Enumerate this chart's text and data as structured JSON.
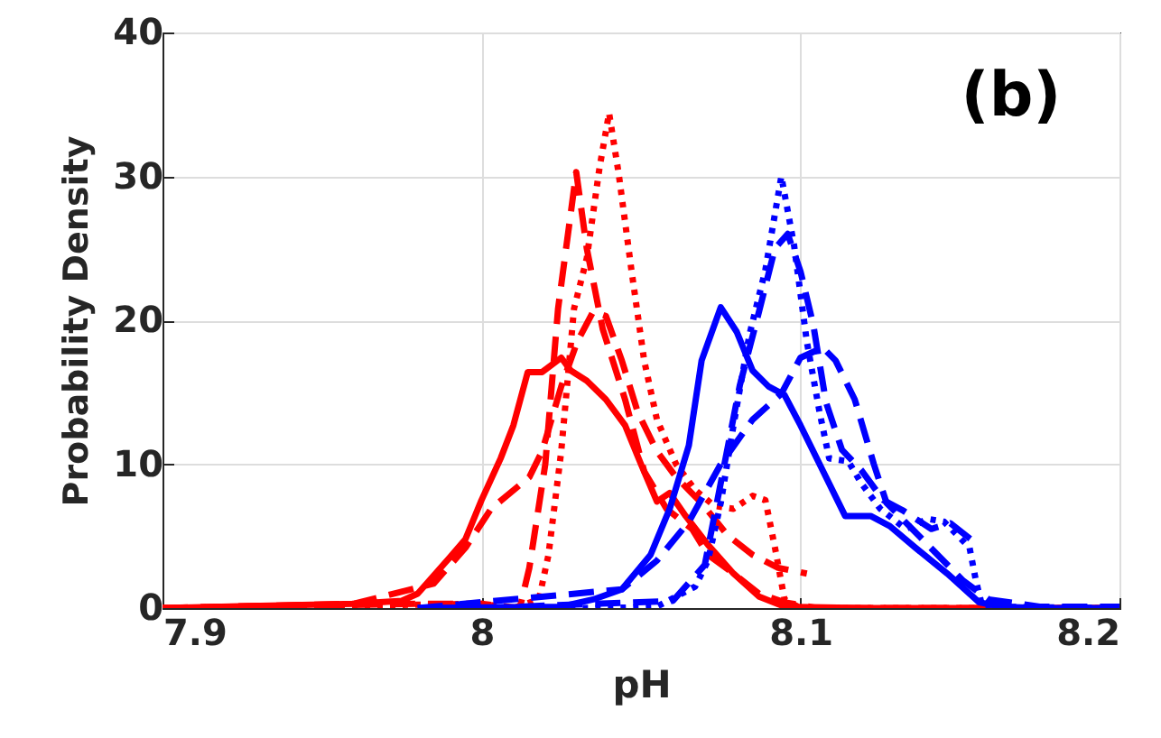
{
  "chart_data": {
    "type": "line",
    "xlabel": "pH",
    "ylabel": "Probability Density",
    "annotations": [
      "(b)"
    ],
    "xlim": [
      7.9,
      8.2
    ],
    "ylim": [
      0,
      40
    ],
    "xticks": [
      7.9,
      8,
      8.1,
      8.2
    ],
    "yticks": [
      0,
      10,
      20,
      30,
      40
    ],
    "grid": true,
    "marker": "none",
    "series": [
      {
        "color": "#ff0000",
        "line_style": "solid",
        "x": [
          7.9,
          7.96,
          7.975,
          7.98,
          7.99,
          7.995,
          8.0,
          8.006,
          8.01,
          8.0145,
          8.019,
          8.025,
          8.028,
          8.033,
          8.039,
          8.045,
          8.05,
          8.055,
          8.059,
          8.064,
          8.071,
          8.079,
          8.087,
          8.095,
          8.12,
          8.2
        ],
        "values": [
          0,
          0.3,
          0.5,
          1,
          3.5,
          4.8,
          7.5,
          10.4,
          12.7,
          16.4,
          16.4,
          17.4,
          16.5,
          15.8,
          14.5,
          12.7,
          10,
          7.4,
          8,
          6.4,
          4.4,
          2.4,
          0.8,
          0.1,
          0,
          0
        ]
      },
      {
        "color": "#ff0000",
        "line_style": "dashed",
        "x": [
          7.9,
          7.96,
          7.985,
          7.995,
          8.003,
          8.015,
          8.019,
          8.025,
          8.03,
          8.035,
          8.039,
          8.044,
          8.049,
          8.055,
          8.061,
          8.069,
          8.077,
          8.085,
          8.093,
          8.102
        ],
        "values": [
          0,
          0.3,
          1.7,
          4.2,
          6.9,
          9.1,
          10.9,
          15.4,
          18.5,
          20.6,
          20.3,
          17.2,
          13.6,
          10.9,
          9.1,
          7.3,
          5.1,
          3.7,
          2.8,
          2.4
        ]
      },
      {
        "color": "#ff0000",
        "line_style": "dashed",
        "x": [
          7.9,
          7.98,
          8.0,
          8.012,
          8.015,
          8.02,
          8.024,
          8.0297,
          8.033,
          8.038,
          8.045,
          8.051,
          8.058,
          8.066,
          8.071,
          8.079,
          8.087,
          8.095,
          8.105,
          8.2
        ],
        "values": [
          0,
          0.3,
          0.3,
          0,
          2.8,
          10,
          20.8,
          30.3,
          25,
          19.4,
          14.5,
          9.5,
          6.9,
          5.5,
          3.7,
          2.4,
          1,
          0.4,
          0,
          0
        ]
      },
      {
        "color": "#ff0000",
        "line_style": "dotted",
        "x": [
          7.9,
          8.0,
          8.01,
          8.018,
          8.021,
          8.025,
          8.029,
          8.033,
          8.037,
          8.04,
          8.043,
          8.047,
          8.051,
          8.055,
          8.061,
          8.067,
          8.073,
          8.079,
          8.085,
          8.089,
          8.092,
          8.095,
          8.1,
          8.2
        ],
        "values": [
          0,
          0.3,
          0,
          0.6,
          3.7,
          10.9,
          20.8,
          24.3,
          30.6,
          34.4,
          30.2,
          23.5,
          17.2,
          13.1,
          10,
          8.2,
          7.1,
          6.9,
          7.8,
          7.5,
          4.2,
          0.6,
          0,
          0
        ]
      },
      {
        "color": "#0000ff",
        "line_style": "solid",
        "x": [
          7.98,
          8.025,
          8.035,
          8.044,
          8.053,
          8.059,
          8.065,
          8.069,
          8.075,
          8.08,
          8.085,
          8.09,
          8.095,
          8.1,
          8.106,
          8.114,
          8.122,
          8.128,
          8.136,
          8.146,
          8.156,
          8.163,
          8.175,
          8.2
        ],
        "values": [
          0,
          0.1,
          0.6,
          1.3,
          3.7,
          6.9,
          11.3,
          17.2,
          20.9,
          19.2,
          16.5,
          15.4,
          14.8,
          12.7,
          10,
          6.4,
          6.4,
          5.7,
          4.2,
          2.4,
          0.4,
          0.1,
          0,
          0
        ]
      },
      {
        "color": "#0000ff",
        "line_style": "dashed",
        "x": [
          7.98,
          8.044,
          8.055,
          8.065,
          8.075,
          8.085,
          8.094,
          8.1,
          8.107,
          8.111,
          8.117,
          8.123,
          8.127,
          8.135,
          8.143,
          8.151,
          8.159,
          8.175,
          8.2
        ],
        "values": [
          0,
          1.3,
          3.3,
          6,
          10,
          13.1,
          14.9,
          17.4,
          18.1,
          17.2,
          14.5,
          10,
          7.3,
          5.5,
          3.7,
          1.9,
          0.6,
          0.1,
          0.1
        ]
      },
      {
        "color": "#0000ff",
        "line_style": "dashed",
        "x": [
          8.0,
          8.06,
          8.07,
          8.081,
          8.087,
          8.092,
          8.096,
          8.1,
          8.104,
          8.108,
          8.113,
          8.119,
          8.126,
          8.132,
          8.141,
          8.147,
          8.155
        ],
        "values": [
          0,
          0.5,
          3,
          15.5,
          20.6,
          25,
          26,
          23.4,
          19.7,
          14.3,
          11,
          9.6,
          7.5,
          6.8,
          5.5,
          5.9,
          4.5
        ]
      },
      {
        "color": "#0000ff",
        "line_style": "dotted",
        "x": [
          8.0,
          8.04,
          8.055,
          8.061,
          8.067,
          8.071,
          8.075,
          8.079,
          8.084,
          8.089,
          8.094,
          8.098,
          8.102,
          8.106,
          8.109,
          8.115,
          8.119,
          8.125,
          8.133,
          8.14,
          8.145,
          8.149,
          8.153,
          8.155,
          8.157,
          8.2
        ],
        "values": [
          0,
          0,
          0.1,
          0.8,
          1.5,
          3.3,
          7.3,
          12.7,
          19,
          23.5,
          30,
          25.2,
          18.5,
          13.6,
          10.4,
          10.2,
          8.7,
          6.9,
          5.5,
          6.2,
          6,
          5.1,
          4.2,
          1.9,
          0.1,
          0
        ]
      }
    ]
  }
}
